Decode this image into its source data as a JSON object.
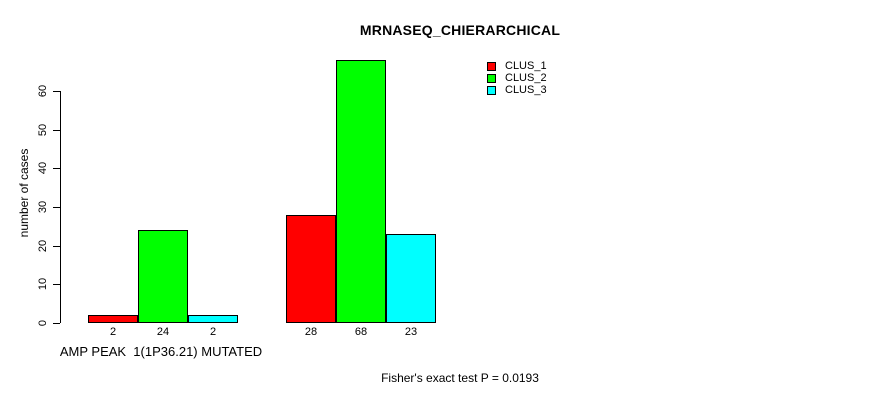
{
  "chart_data": {
    "type": "bar",
    "title": "MRNASEQ_CHIERARCHICAL",
    "ylabel": "number of cases",
    "xlabel": "",
    "ylim": [
      0,
      70
    ],
    "yticks": [
      0,
      10,
      20,
      30,
      40,
      50,
      60
    ],
    "grid": false,
    "legend_position": "top-right-inside",
    "categories": [
      "AMP PEAK  1(1P36.21) MUTATED",
      ""
    ],
    "series": [
      {
        "name": "CLUS_1",
        "color": "#ff0000",
        "values": [
          2,
          28
        ]
      },
      {
        "name": "CLUS_2",
        "color": "#00ff00",
        "values": [
          24,
          68
        ]
      },
      {
        "name": "CLUS_3",
        "color": "#00ffff",
        "values": [
          2,
          23
        ]
      }
    ],
    "bar_value_labels": [
      [
        "2",
        "24",
        "2"
      ],
      [
        "28",
        "68",
        "23"
      ]
    ],
    "annotation": "Fisher's exact test P = 0.0193"
  },
  "colors": {
    "clus_1": "#ff0000",
    "clus_2": "#00ff00",
    "clus_3": "#00ffff",
    "axis": "#000000",
    "background": "#ffffff"
  }
}
